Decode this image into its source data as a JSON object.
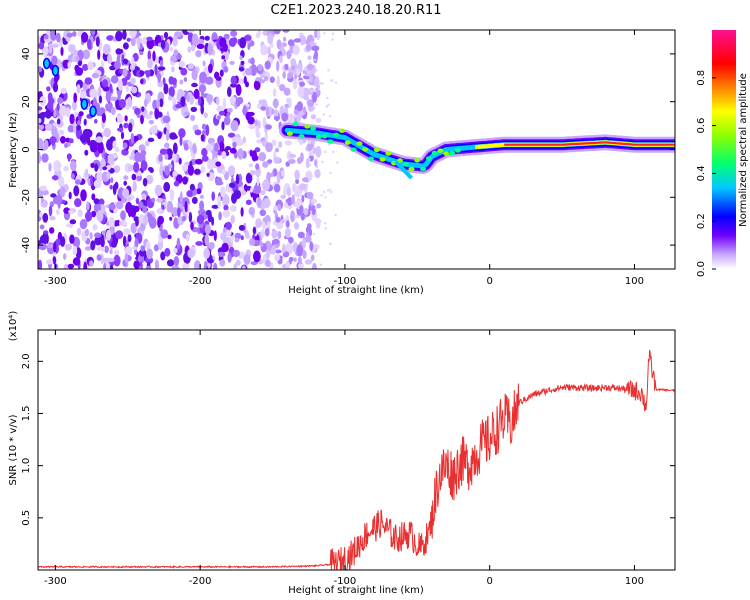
{
  "title": "C2E1.2023.240.18.20.R11",
  "chart_data": [
    {
      "type": "heatmap",
      "xlabel": "Height of straight line (km)",
      "ylabel": "Frequency (Hz)",
      "xlim": [
        -312,
        128
      ],
      "ylim": [
        -50,
        50
      ],
      "xticks": [
        -300,
        -200,
        -100,
        0,
        100
      ],
      "yticks": [
        -40,
        -20,
        0,
        20,
        40
      ],
      "colorbar": {
        "label": "Normalized spectral amplitude",
        "range": [
          0,
          1
        ],
        "ticks": [
          0.0,
          0.2,
          0.4,
          0.6,
          0.8
        ],
        "colors": [
          "#ffffff",
          "#c8a8ff",
          "#7000ff",
          "#0000ff",
          "#00c8ff",
          "#00ff70",
          "#90ff00",
          "#ffff00",
          "#ff8000",
          "#ff0000",
          "#ff1090"
        ]
      },
      "trace": [
        {
          "x": -140,
          "y": 8
        },
        {
          "x": -120,
          "y": 7
        },
        {
          "x": -100,
          "y": 5
        },
        {
          "x": -80,
          "y": -2
        },
        {
          "x": -60,
          "y": -6
        },
        {
          "x": -45,
          "y": -7
        },
        {
          "x": -40,
          "y": -3
        },
        {
          "x": -30,
          "y": 0
        },
        {
          "x": -10,
          "y": 1
        },
        {
          "x": 10,
          "y": 2
        },
        {
          "x": 50,
          "y": 2
        },
        {
          "x": 80,
          "y": 3
        },
        {
          "x": 100,
          "y": 2
        },
        {
          "x": 128,
          "y": 2
        }
      ]
    },
    {
      "type": "line",
      "xlabel": "Height of straight line (km)",
      "ylabel": "SNR (10 * v/v)",
      "yscale_label": "(x10⁴)",
      "xlim": [
        -312,
        128
      ],
      "ylim": [
        0,
        2.3
      ],
      "xticks": [
        -300,
        -200,
        -100,
        0,
        100
      ],
      "yticks": [
        0.5,
        1.0,
        1.5,
        2.0
      ],
      "series": [
        {
          "color": "#e83030",
          "x": [
            -312,
            -250,
            -200,
            -150,
            -120,
            -105,
            -95,
            -85,
            -75,
            -65,
            -55,
            -48,
            -42,
            -35,
            -30,
            -25,
            -20,
            -15,
            -10,
            -5,
            0,
            5,
            10,
            15,
            20,
            30,
            40,
            50,
            60,
            70,
            80,
            90,
            100,
            105,
            108,
            110,
            115,
            128
          ],
          "y": [
            0.03,
            0.03,
            0.03,
            0.03,
            0.04,
            0.06,
            0.15,
            0.35,
            0.45,
            0.3,
            0.35,
            0.2,
            0.35,
            0.9,
            1.0,
            0.9,
            1.05,
            1.0,
            1.1,
            1.2,
            1.25,
            1.35,
            1.45,
            1.4,
            1.6,
            1.68,
            1.72,
            1.75,
            1.75,
            1.74,
            1.75,
            1.74,
            1.72,
            1.7,
            1.55,
            2.05,
            1.73,
            1.72
          ]
        }
      ]
    }
  ]
}
